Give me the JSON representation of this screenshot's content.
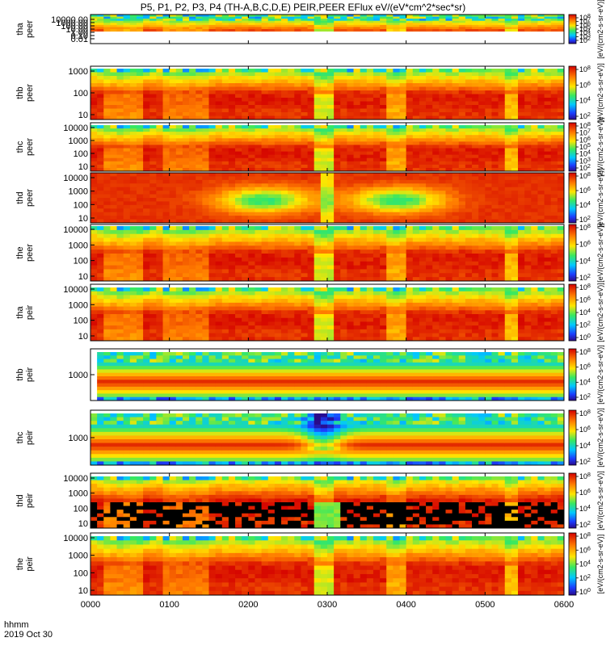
{
  "chart_data": {
    "type": "heatmap",
    "title": "P5, P1, P2, P3, P4 (TH-A,B,C,D,E) PEIR,PEER EFlux eV/(eV*cm^2*sec*sr)",
    "x_label_line1": "hhmm",
    "x_label_line2": "2019 Oct 30",
    "x_ticks": [
      "0000",
      "0100",
      "0200",
      "0300",
      "0400",
      "0500",
      "0600"
    ],
    "x_range_hours": [
      0,
      6
    ],
    "colorbar_ticks": [
      "10^8",
      "10^7",
      "10^6",
      "10^5",
      "10^4",
      "10^3",
      "10^2"
    ],
    "colorbar_label": "[eV/(cm2-s-sr-eV)]",
    "panels": [
      {
        "id": "tha_peer",
        "label1": "tha",
        "label2": "peer",
        "y_ticks": [
          "10000.00",
          "1000.00",
          "100.00",
          "10.00",
          "1.00",
          "0.10",
          "0.01"
        ],
        "cb_ticks": [
          "10^8",
          "10^7",
          "10^6",
          "10^5",
          "10^4",
          "10^3",
          "10^2"
        ]
      },
      {
        "id": "thb_peer",
        "label1": "thb",
        "label2": "peer",
        "y_ticks": [
          "1000",
          "100",
          "10"
        ],
        "cb_ticks": [
          "10^8",
          "10^6",
          "10^4",
          "10^2"
        ]
      },
      {
        "id": "thc_peer",
        "label1": "thc",
        "label2": "peer",
        "y_ticks": [
          "10000",
          "1000",
          "100",
          "10"
        ],
        "cb_ticks": [
          "10^8",
          "10^7",
          "10^6",
          "10^5",
          "10^4",
          "10^3",
          "10^2"
        ]
      },
      {
        "id": "thd_peer",
        "label1": "thd",
        "label2": "peer",
        "y_ticks": [
          "10000",
          "1000",
          "100",
          "10"
        ],
        "cb_ticks": [
          "10^8",
          "10^6",
          "10^4",
          "10^2"
        ]
      },
      {
        "id": "the_peer",
        "label1": "the",
        "label2": "peer",
        "y_ticks": [
          "10000",
          "1000",
          "100",
          "10"
        ],
        "cb_ticks": [
          "10^8",
          "10^6",
          "10^4",
          "10^2"
        ]
      },
      {
        "id": "tha_peir",
        "label1": "tha",
        "label2": "peir",
        "y_ticks": [
          "10000",
          "1000",
          "100",
          "10"
        ],
        "cb_ticks": [
          "10^8",
          "10^6",
          "10^4",
          "10^2",
          "10^0"
        ]
      },
      {
        "id": "thb_peir",
        "label1": "thb",
        "label2": "peir",
        "y_ticks": [
          "1000"
        ],
        "cb_ticks": [
          "10^8",
          "10^6",
          "10^4",
          "10^2"
        ]
      },
      {
        "id": "thc_peir",
        "label1": "thc",
        "label2": "peir",
        "y_ticks": [
          "1000"
        ],
        "cb_ticks": [
          "10^8",
          "10^6",
          "10^4",
          "10^2"
        ]
      },
      {
        "id": "thd_peir",
        "label1": "thd",
        "label2": "peir",
        "y_ticks": [
          "10000",
          "1000",
          "100",
          "10"
        ],
        "cb_ticks": [
          "10^8",
          "10^6",
          "10^4",
          "10^2"
        ]
      },
      {
        "id": "the_peir",
        "label1": "the",
        "label2": "peir",
        "y_ticks": [
          "10000",
          "1000",
          "100",
          "10"
        ],
        "cb_ticks": [
          "10^8",
          "10^6",
          "10^4",
          "10^2",
          "10^0"
        ]
      }
    ],
    "colors": {
      "background": "#ffffff",
      "axis": "#000000"
    }
  }
}
